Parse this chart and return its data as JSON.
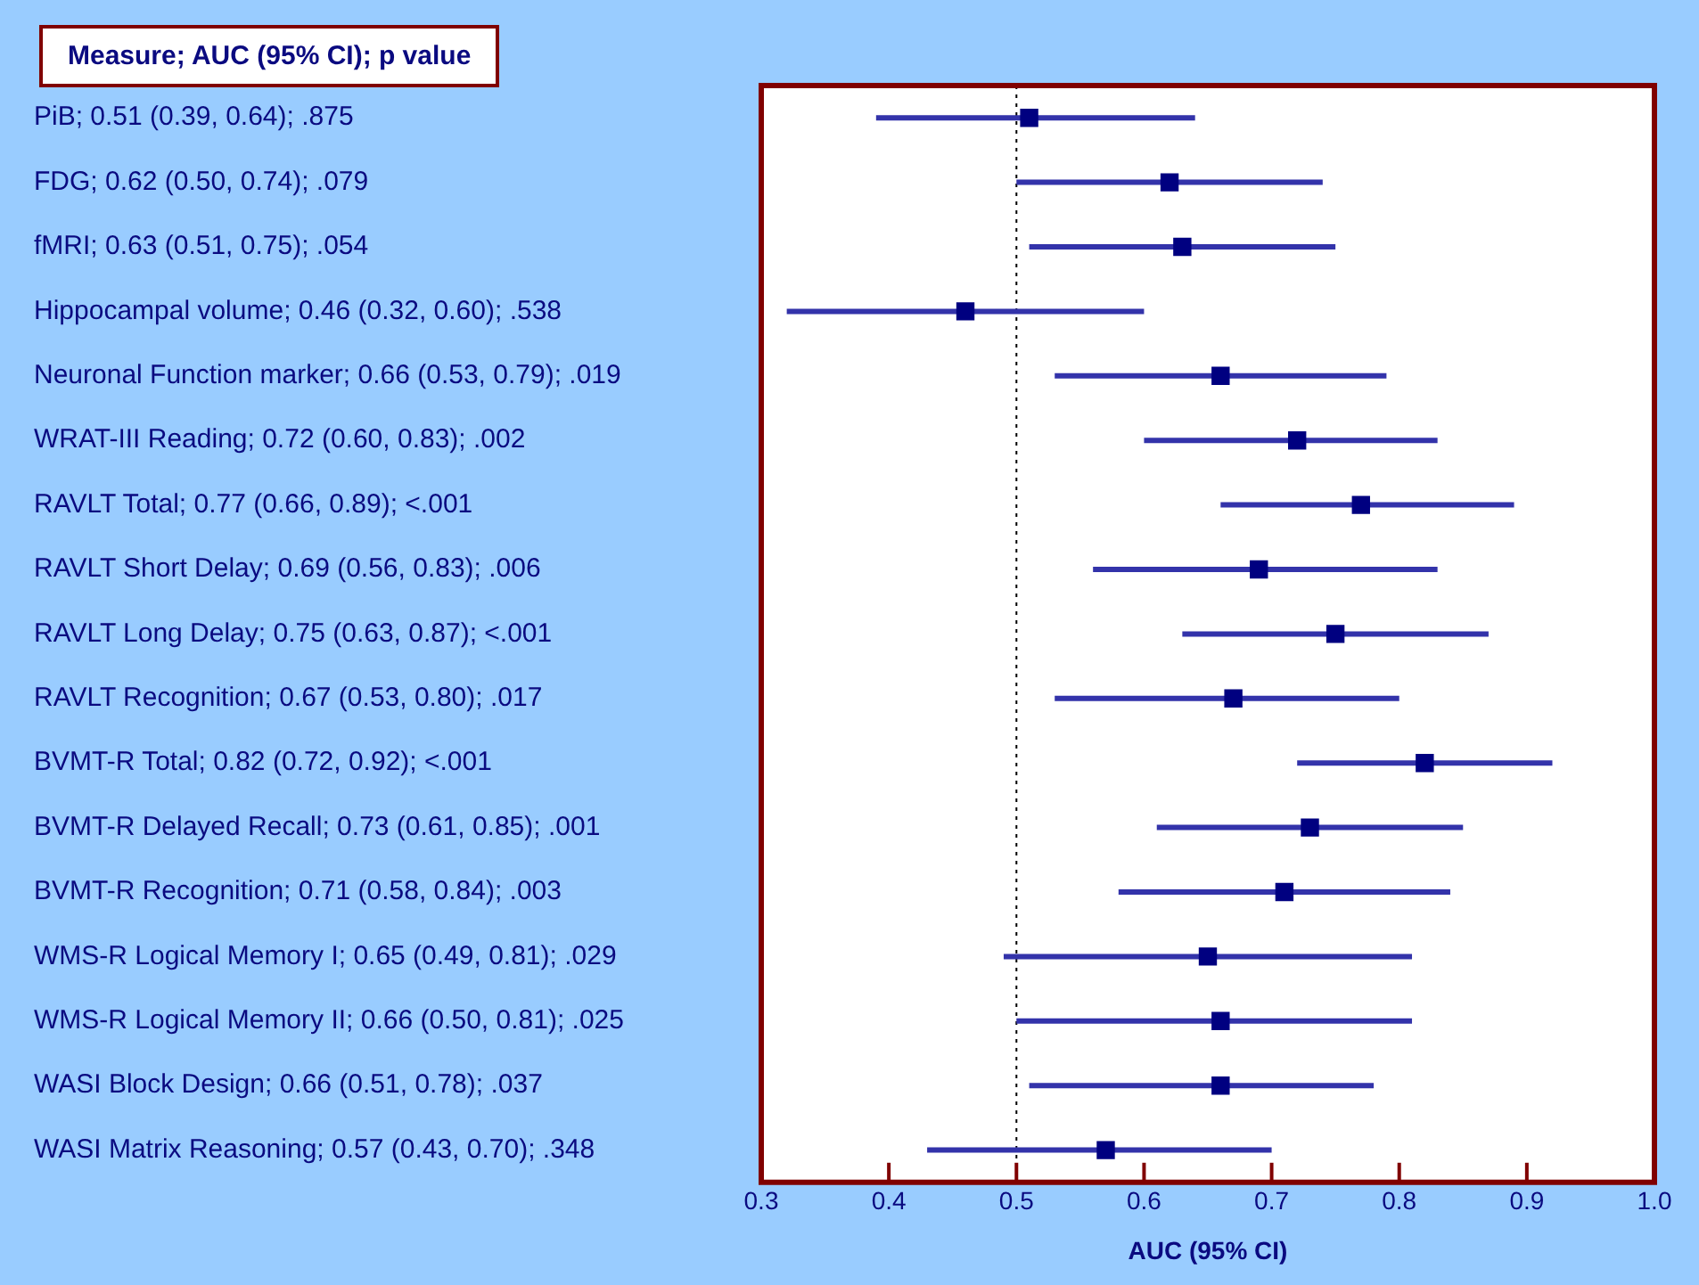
{
  "chart_data": {
    "type": "scatter",
    "orientation": "horizontal",
    "title": "Measure; AUC (95% CI); p value",
    "xlabel": "AUC (95% CI)",
    "categories": [
      "PiB; 0.51 (0.39, 0.64); .875",
      "FDG; 0.62 (0.50, 0.74); .079",
      "fMRI; 0.63 (0.51, 0.75); .054",
      "Hippocampal volume; 0.46 (0.32, 0.60); .538",
      "Neuronal Function marker; 0.66 (0.53, 0.79); .019",
      "WRAT-III Reading; 0.72 (0.60, 0.83); .002",
      "RAVLT Total; 0.77 (0.66, 0.89); <.001",
      "RAVLT Short Delay; 0.69 (0.56, 0.83); .006",
      "RAVLT Long Delay; 0.75 (0.63, 0.87); <.001",
      "RAVLT Recognition; 0.67 (0.53, 0.80); .017",
      "BVMT-R Total; 0.82 (0.72, 0.92); <.001",
      "BVMT-R Delayed Recall; 0.73 (0.61, 0.85); .001",
      "BVMT-R Recognition; 0.71 (0.58, 0.84); .003",
      "WMS-R Logical Memory I; 0.65 (0.49, 0.81); .029",
      "WMS-R Logical Memory II; 0.66 (0.50, 0.81); .025",
      "WASI Block Design; 0.66 (0.51, 0.78); .037",
      "WASI Matrix Reasoning; 0.57 (0.43, 0.70); .348"
    ],
    "values": [
      0.51,
      0.62,
      0.63,
      0.46,
      0.66,
      0.72,
      0.77,
      0.69,
      0.75,
      0.67,
      0.82,
      0.73,
      0.71,
      0.65,
      0.66,
      0.66,
      0.57
    ],
    "errors": [
      [
        0.39,
        0.64
      ],
      [
        0.5,
        0.74
      ],
      [
        0.51,
        0.75
      ],
      [
        0.32,
        0.6
      ],
      [
        0.53,
        0.79
      ],
      [
        0.6,
        0.83
      ],
      [
        0.66,
        0.89
      ],
      [
        0.56,
        0.83
      ],
      [
        0.63,
        0.87
      ],
      [
        0.53,
        0.8
      ],
      [
        0.72,
        0.92
      ],
      [
        0.61,
        0.85
      ],
      [
        0.58,
        0.84
      ],
      [
        0.49,
        0.81
      ],
      [
        0.5,
        0.81
      ],
      [
        0.51,
        0.78
      ],
      [
        0.43,
        0.7
      ]
    ],
    "color": "#000080",
    "marker": "square",
    "xlim": [
      0.3,
      1.0
    ],
    "xticks": [
      0.3,
      0.4,
      0.5,
      0.6,
      0.7,
      0.8,
      0.9,
      {
        "value": 1.0,
        "label": "1.0"
      }
    ],
    "ref_lines": [
      {
        "axis": "x",
        "value": 0.5,
        "color": "#000000",
        "line_style": "dotted"
      }
    ]
  }
}
